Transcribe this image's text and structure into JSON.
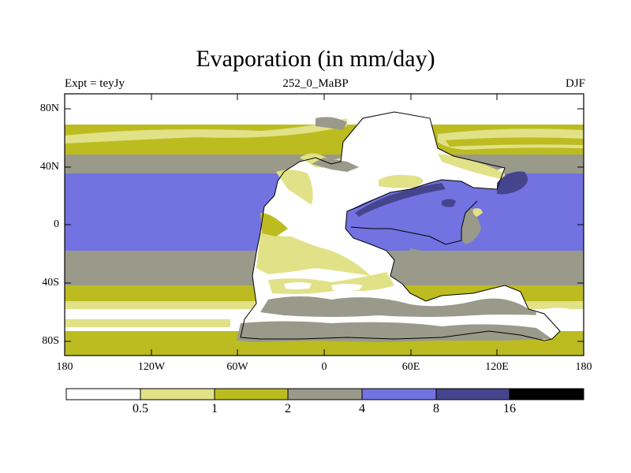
{
  "title": "Evaporation (in mm/day)",
  "subtitle_left": "Expt = teyJy",
  "subtitle_center": "252_0_MaBP",
  "subtitle_right": "DJF",
  "y_ticks": [
    "80N",
    "40N",
    "0",
    "40S",
    "80S"
  ],
  "x_ticks": [
    "180",
    "120W",
    "60W",
    "0",
    "60E",
    "120E",
    "180"
  ],
  "colorbar": {
    "levels": [
      "0.5",
      "1",
      "2",
      "4",
      "8",
      "16"
    ],
    "colors": [
      "#ffffff",
      "#e1e188",
      "#bcbc21",
      "#9a9a8a",
      "#7272e0",
      "#45458e",
      "#000000"
    ]
  }
}
